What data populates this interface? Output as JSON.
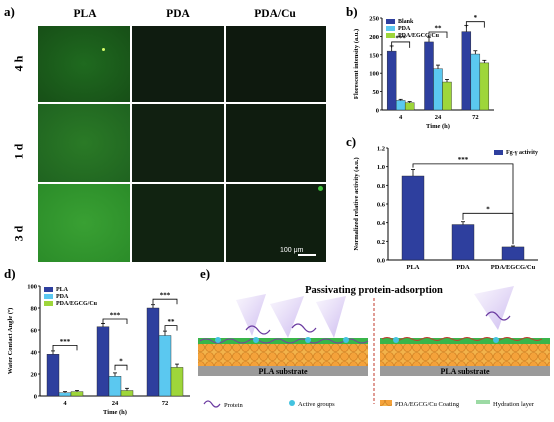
{
  "panel_a": {
    "label": "a)",
    "columns": [
      "PLA",
      "PDA",
      "PDA/Cu"
    ],
    "rows": [
      "4 h",
      "1 d",
      "3 d"
    ],
    "scale_bar": "100 μm"
  },
  "panel_b": {
    "label": "b)"
  },
  "panel_c": {
    "label": "c)"
  },
  "panel_d": {
    "label": "d)"
  },
  "panel_e": {
    "label": "e)",
    "title": "Passivating protein-adsorption",
    "substrate_label": "PLA substrate",
    "legend": {
      "protein": "Protein",
      "active": "Active groups",
      "coating": "PDA/EGCG/Cu Coating",
      "hydration": "Hydration layer"
    }
  },
  "colors": {
    "blank": "#2e3f9e",
    "pda": "#5bc8f0",
    "cu": "#9ed63a",
    "green_bright": "#2e8b2a",
    "green_dark": "#0f1f0f"
  },
  "chart_data": [
    {
      "id": "b",
      "type": "bar",
      "ylabel": "Florescent intensity (a.u.)",
      "xlabel": "Time (h)",
      "categories": [
        "4",
        "24",
        "72"
      ],
      "ylim": [
        0,
        250
      ],
      "yticks": [
        "0",
        "50",
        "100",
        "150",
        "200",
        "250"
      ],
      "series": [
        {
          "name": "Blank",
          "values": [
            160,
            185,
            213
          ],
          "err": [
            14,
            13,
            17
          ]
        },
        {
          "name": "PDA",
          "values": [
            26,
            112,
            152
          ],
          "err": [
            3,
            10,
            9
          ]
        },
        {
          "name": "PDA/EGCG/Cu",
          "values": [
            20,
            76,
            128
          ],
          "err": [
            3,
            7,
            7
          ]
        }
      ],
      "sig": [
        "***",
        "**",
        "*"
      ]
    },
    {
      "id": "c",
      "type": "bar",
      "ylabel": "Normalized relative activity (a.u.)",
      "categories": [
        "PLA",
        "PDA",
        "PDA/EGCG/Cu"
      ],
      "ylim": [
        0,
        1.2
      ],
      "yticks": [
        "0.0",
        "0.2",
        "0.4",
        "0.6",
        "0.8",
        "1.0",
        "1.2"
      ],
      "series": [
        {
          "name": "Fg-γ activity",
          "values": [
            0.9,
            0.38,
            0.14
          ],
          "err": [
            0.07,
            0.03,
            0.01
          ]
        }
      ],
      "sig": [
        "***",
        "*"
      ]
    },
    {
      "id": "d",
      "type": "bar",
      "ylabel": "Water Contact Angle (º)",
      "xlabel": "Time (h)",
      "categories": [
        "4",
        "24",
        "72"
      ],
      "ylim": [
        0,
        100
      ],
      "yticks": [
        "0",
        "20",
        "40",
        "60",
        "80",
        "100"
      ],
      "series": [
        {
          "name": "PLA",
          "values": [
            38,
            63,
            80
          ],
          "err": [
            3,
            3,
            3
          ]
        },
        {
          "name": "PDA",
          "values": [
            3,
            18,
            55
          ],
          "err": [
            1,
            3,
            4
          ]
        },
        {
          "name": "PDA/EGCG/Cu",
          "values": [
            4,
            5,
            26
          ],
          "err": [
            1,
            2,
            3
          ]
        }
      ],
      "sig": [
        "***",
        "***",
        "***",
        "*",
        "**"
      ]
    }
  ]
}
